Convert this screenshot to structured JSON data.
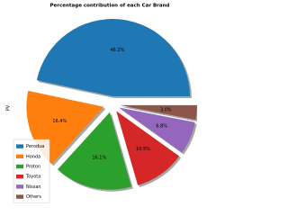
{
  "chart_data": {
    "type": "pie",
    "title": "Percentage contribution of each Car Brand",
    "ylabel": "PV",
    "categories": [
      "Perodua",
      "Honda",
      "Proton",
      "Toyota",
      "Nissan",
      "Others"
    ],
    "values": [
      46.2,
      16.4,
      16.1,
      10.5,
      6.8,
      3.0
    ],
    "value_labels": [
      "46.2%",
      "16.4%",
      "16.1%",
      "10.5%",
      "6.8%",
      "3.0%"
    ],
    "colors": [
      "#1f77b4",
      "#ff7f0e",
      "#2ca02c",
      "#d62728",
      "#9467bd",
      "#8c564b"
    ],
    "legend": "lower left"
  }
}
